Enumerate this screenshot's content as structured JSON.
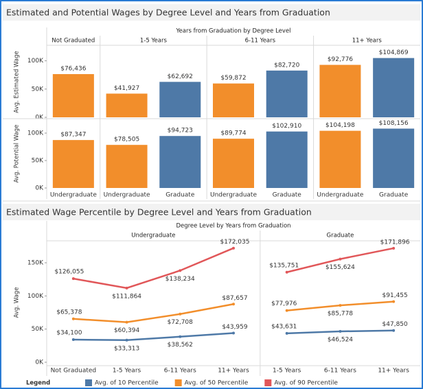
{
  "chart_data": [
    {
      "type": "bar",
      "title": "Estimated and Potential Wages by Degree Level and Years from Graduation",
      "header": "Years from Graduation by Degree Level",
      "groups": [
        {
          "name": "Not Graduated",
          "categories": [
            "Undergraduate"
          ],
          "colors": [
            "#f28e2b"
          ]
        },
        {
          "name": "1-5 Years",
          "categories": [
            "Undergraduate",
            "Graduate"
          ],
          "colors": [
            "#f28e2b",
            "#4e79a7"
          ]
        },
        {
          "name": "6-11 Years",
          "categories": [
            "Undergraduate",
            "Graduate"
          ],
          "colors": [
            "#f28e2b",
            "#4e79a7"
          ]
        },
        {
          "name": "11+ Years",
          "categories": [
            "Undergraduate",
            "Graduate"
          ],
          "colors": [
            "#f28e2b",
            "#4e79a7"
          ]
        }
      ],
      "rows": [
        {
          "axis_label": "Avg. Estimated Wage",
          "values": [
            76436,
            41927,
            62692,
            59872,
            82720,
            92776,
            104869
          ],
          "value_labels": [
            "$76,436",
            "$41,927",
            "$62,692",
            "$59,872",
            "$82,720",
            "$92,776",
            "$104,869"
          ]
        },
        {
          "axis_label": "Avg. Potential Wage",
          "values": [
            87347,
            78505,
            94723,
            89774,
            102910,
            104198,
            108156
          ],
          "value_labels": [
            "$87,347",
            "$78,505",
            "$94,723",
            "$89,774",
            "$102,910",
            "$104,198",
            "$108,156"
          ]
        }
      ],
      "ylim": [
        0,
        125000
      ],
      "yticks": [
        {
          "value": 0,
          "label": "0K"
        },
        {
          "value": 50000,
          "label": "50K"
        },
        {
          "value": 100000,
          "label": "100K"
        }
      ]
    },
    {
      "type": "line",
      "title": "Estimated Wage Percentile by Degree Level and Years from Graduation",
      "header": "Degree Level by Years from Graduation",
      "groups": [
        {
          "name": "Undergraduate",
          "categories": [
            "Not Graduated",
            "1-5 Years",
            "6-11 Years",
            "11+ Years"
          ]
        },
        {
          "name": "Graduate",
          "categories": [
            "1-5 Years",
            "6-11 Years",
            "11+ Years"
          ]
        }
      ],
      "y_label": "Avg. Wage",
      "series": [
        {
          "name": "Avg. of 10 Percentile",
          "color": "#4e79a7",
          "values": [
            34100,
            33313,
            38562,
            43959,
            43631,
            46524,
            47850
          ],
          "value_labels": [
            "$34,100",
            "$33,313",
            "$38,562",
            "$43,959",
            "$43,631",
            "$46,524",
            "$47,850"
          ]
        },
        {
          "name": "Avg. of 50 Percentile",
          "color": "#f28e2b",
          "values": [
            65378,
            60394,
            72708,
            87657,
            77976,
            85778,
            91455
          ],
          "value_labels": [
            "$65,378",
            "$60,394",
            "$72,708",
            "$87,657",
            "$77,976",
            "$85,778",
            "$91,455"
          ]
        },
        {
          "name": "Avg. of 90 Percentile",
          "color": "#e15759",
          "values": [
            126055,
            111864,
            138234,
            172035,
            135751,
            155624,
            171896
          ],
          "value_labels": [
            "$126,055",
            "$111,864",
            "$138,234",
            "$172,035",
            "$135,751",
            "$155,624",
            "$171,896"
          ]
        }
      ],
      "ylim": [
        0,
        180000
      ],
      "yticks": [
        {
          "value": 0,
          "label": "0K"
        },
        {
          "value": 50000,
          "label": "50K"
        },
        {
          "value": 100000,
          "label": "100K"
        },
        {
          "value": 150000,
          "label": "150K"
        }
      ],
      "legend_title": "Legend"
    }
  ]
}
